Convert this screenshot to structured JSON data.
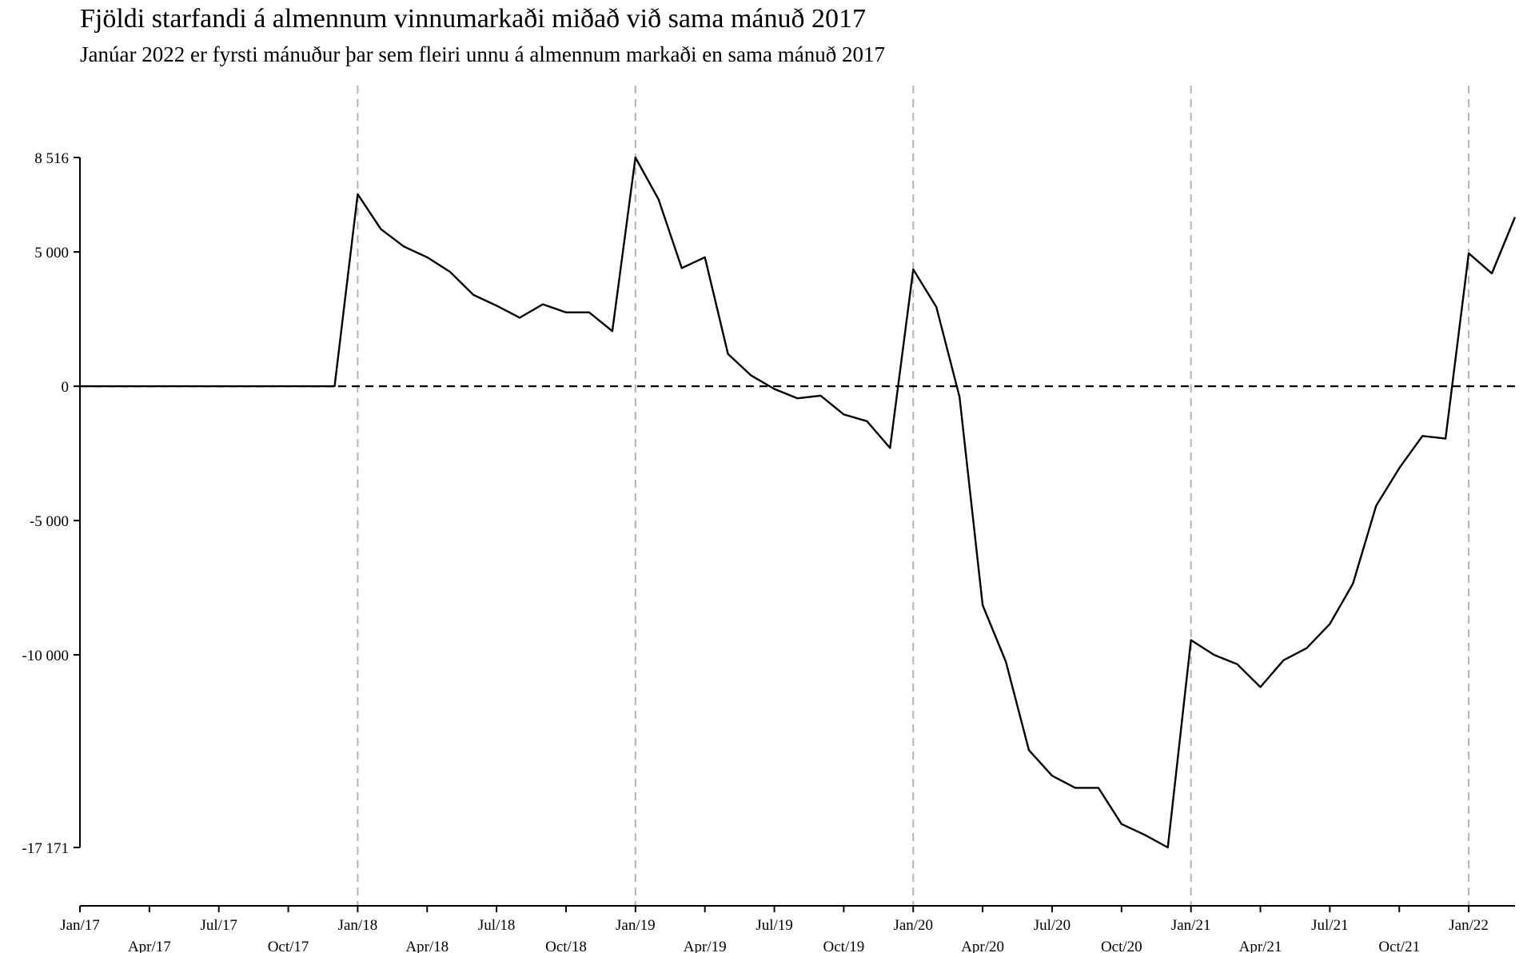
{
  "chart_data": {
    "type": "line",
    "title": "Fjöldi starfandi á almennum vinnumarkaði miðað við sama mánuð 2017",
    "subtitle": "Janúar 2022 er fyrsti mánuður þar sem fleiri unnu á almennum markaði en sama mánuð 2017",
    "xlabel": "",
    "ylabel": "",
    "x_range": [
      "2017-01",
      "2022-03"
    ],
    "ylim": [
      -17171,
      8516
    ],
    "y_ticks": [
      {
        "value": 8516,
        "label": "8 516"
      },
      {
        "value": 5000,
        "label": "5 000"
      },
      {
        "value": 0,
        "label": "0"
      },
      {
        "value": -5000,
        "label": "-5 000"
      },
      {
        "value": -10000,
        "label": "-10 000"
      },
      {
        "value": -17171,
        "label": "-17 171"
      }
    ],
    "x_ticks": [
      {
        "month": "2017-01",
        "label": "Jan/17"
      },
      {
        "month": "2017-04",
        "label": "Apr/17"
      },
      {
        "month": "2017-07",
        "label": "Jul/17"
      },
      {
        "month": "2017-10",
        "label": "Oct/17"
      },
      {
        "month": "2018-01",
        "label": "Jan/18"
      },
      {
        "month": "2018-04",
        "label": "Apr/18"
      },
      {
        "month": "2018-07",
        "label": "Jul/18"
      },
      {
        "month": "2018-10",
        "label": "Oct/18"
      },
      {
        "month": "2019-01",
        "label": "Jan/19"
      },
      {
        "month": "2019-04",
        "label": "Apr/19"
      },
      {
        "month": "2019-07",
        "label": "Jul/19"
      },
      {
        "month": "2019-10",
        "label": "Oct/19"
      },
      {
        "month": "2020-01",
        "label": "Jan/20"
      },
      {
        "month": "2020-04",
        "label": "Apr/20"
      },
      {
        "month": "2020-07",
        "label": "Jul/20"
      },
      {
        "month": "2020-10",
        "label": "Oct/20"
      },
      {
        "month": "2021-01",
        "label": "Jan/21"
      },
      {
        "month": "2021-04",
        "label": "Apr/21"
      },
      {
        "month": "2021-07",
        "label": "Jul/21"
      },
      {
        "month": "2021-10",
        "label": "Oct/21"
      },
      {
        "month": "2022-01",
        "label": "Jan/22"
      }
    ],
    "vertical_reference_lines": [
      "2018-01",
      "2019-01",
      "2020-01",
      "2021-01",
      "2022-01"
    ],
    "horizontal_reference_line": 0,
    "grid": false,
    "series": [
      {
        "x": [
          "2017-01",
          "2017-02",
          "2017-03",
          "2017-04",
          "2017-05",
          "2017-06",
          "2017-07",
          "2017-08",
          "2017-09",
          "2017-10",
          "2017-11",
          "2017-12",
          "2018-01",
          "2018-02",
          "2018-03",
          "2018-04",
          "2018-05",
          "2018-06",
          "2018-07",
          "2018-08",
          "2018-09",
          "2018-10",
          "2018-11",
          "2018-12",
          "2019-01",
          "2019-02",
          "2019-03",
          "2019-04",
          "2019-05",
          "2019-06",
          "2019-07",
          "2019-08",
          "2019-09",
          "2019-10",
          "2019-11",
          "2019-12",
          "2020-01",
          "2020-02",
          "2020-03",
          "2020-04",
          "2020-05",
          "2020-06",
          "2020-07",
          "2020-08",
          "2020-09",
          "2020-10",
          "2020-11",
          "2020-12",
          "2021-01",
          "2021-02",
          "2021-03",
          "2021-04",
          "2021-05",
          "2021-06",
          "2021-07",
          "2021-08",
          "2021-09",
          "2021-10",
          "2021-11",
          "2021-12",
          "2022-01",
          "2022-02",
          "2022-03"
        ],
        "values": [
          0,
          0,
          0,
          0,
          0,
          0,
          0,
          0,
          0,
          0,
          0,
          0,
          7150,
          5850,
          5200,
          4800,
          4250,
          3400,
          3000,
          2550,
          3050,
          2750,
          2750,
          2050,
          8516,
          6950,
          4400,
          4800,
          1200,
          400,
          -100,
          -450,
          -350,
          -1050,
          -1300,
          -2300,
          4350,
          2950,
          -400,
          -8150,
          -10250,
          -13550,
          -14500,
          -14950,
          -14950,
          -16300,
          -16700,
          -17171,
          -9450,
          -10000,
          -10350,
          -11200,
          -10200,
          -9750,
          -8850,
          -7350,
          -4450,
          -3050,
          -1850,
          -1950,
          4950,
          4200,
          6300
        ]
      }
    ]
  }
}
